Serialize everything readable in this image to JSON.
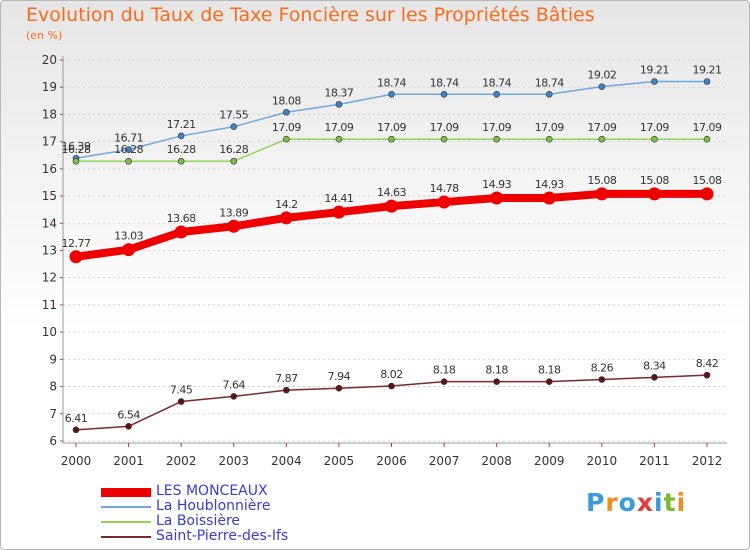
{
  "title": "Evolution du Taux de Taxe Foncière sur les Propriétés Bâties",
  "unit_label": "(en %)",
  "logo": {
    "text": "Proxiti",
    "colors": [
      "#3a9ad9",
      "#f28c1e",
      "#3a9ad9",
      "#e83a3a",
      "#3a9ad9",
      "#7ab82e",
      "#f28c1e"
    ]
  },
  "colors": {
    "title": "#ff6a1a",
    "axis_text": "#333333",
    "legend_text": "#3a3ad8",
    "grid": "#c8c8c8"
  },
  "chart_data": {
    "type": "line",
    "title": "Evolution du Taux de Taxe Foncière sur les Propriétés Bâties",
    "ylabel": "(en %)",
    "xlabel": "",
    "x": [
      "2000",
      "2001",
      "2002",
      "2003",
      "2004",
      "2005",
      "2006",
      "2007",
      "2008",
      "2009",
      "2010",
      "2011",
      "2012"
    ],
    "ylim": [
      6,
      20
    ],
    "yticks": [
      "6",
      "7",
      "8",
      "9",
      "10",
      "11",
      "12",
      "13",
      "14",
      "15",
      "16",
      "17",
      "18",
      "19",
      "20"
    ],
    "grid": "horizontal",
    "legend_position": "bottom-left",
    "series": [
      {
        "name": "LES MONCEAUX",
        "color": "#ee0000",
        "marker_color": "#ee0000",
        "width": "thick",
        "values": [
          12.77,
          13.03,
          13.68,
          13.89,
          14.2,
          14.41,
          14.63,
          14.78,
          14.93,
          14.93,
          15.08,
          15.08,
          15.08
        ],
        "labels": [
          "12.77",
          "13.03",
          "13.68",
          "13.89",
          "14.2",
          "14.41",
          "14.63",
          "14.78",
          "14.93",
          "14.93",
          "15.08",
          "15.08",
          "15.08"
        ]
      },
      {
        "name": "La Houblonnière",
        "color": "#6fa8dc",
        "marker_color": "#3d85c6",
        "width": "thin",
        "values": [
          16.39,
          16.71,
          17.21,
          17.55,
          18.08,
          18.37,
          18.74,
          18.74,
          18.74,
          18.74,
          19.02,
          19.21,
          19.21
        ],
        "labels": [
          "16.39",
          "16.71",
          "17.21",
          "17.55",
          "18.08",
          "18.37",
          "18.74",
          "18.74",
          "18.74",
          "18.74",
          "19.02",
          "19.21",
          "19.21"
        ]
      },
      {
        "name": "La Boissière",
        "color": "#93d35a",
        "marker_color": "#7ac142",
        "width": "thin",
        "values": [
          16.28,
          16.28,
          16.28,
          16.28,
          17.09,
          17.09,
          17.09,
          17.09,
          17.09,
          17.09,
          17.09,
          17.09,
          17.09
        ],
        "labels": [
          "16.28",
          "16.28",
          "16.28",
          "16.28",
          "17.09",
          "17.09",
          "17.09",
          "17.09",
          "17.09",
          "17.09",
          "17.09",
          "17.09",
          "17.09"
        ]
      },
      {
        "name": "Saint-Pierre-des-Ifs",
        "color": "#7a2a2a",
        "marker_color": "#5e1414",
        "width": "thin",
        "values": [
          6.41,
          6.54,
          7.45,
          7.64,
          7.87,
          7.94,
          8.02,
          8.18,
          8.18,
          8.18,
          8.26,
          8.34,
          8.42
        ],
        "labels": [
          "6.41",
          "6.54",
          "7.45",
          "7.64",
          "7.87",
          "7.94",
          "8.02",
          "8.18",
          "8.18",
          "8.18",
          "8.26",
          "8.34",
          "8.42"
        ]
      }
    ]
  }
}
